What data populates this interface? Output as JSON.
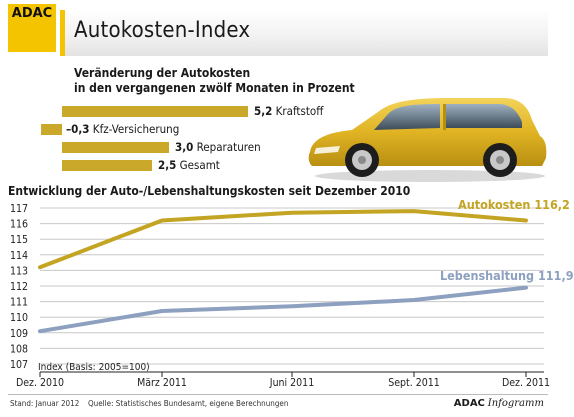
{
  "header": {
    "logo_text": "ADAC",
    "title": "Autokosten-Index",
    "accent_color": "#f5c400"
  },
  "bar_section": {
    "title_line1": "Veränderung der Autokosten",
    "title_line2": "in den vergangenen zwölf Monaten in Prozent"
  },
  "line_section": {
    "title": "Entwicklung der Auto-/Lebenshaltungskosten seit Dezember 2010",
    "index_note": "Index (Basis: 2005=100)"
  },
  "chart_data": [
    {
      "type": "bar",
      "orientation": "horizontal",
      "title": "Veränderung der Autokosten in den vergangenen zwölf Monaten in Prozent",
      "categories": [
        "Kraftstoff",
        "Kfz-Versicherung",
        "Reparaturen",
        "Gesamt"
      ],
      "values": [
        5.2,
        -0.3,
        3.0,
        2.5
      ],
      "value_labels": [
        "5,2",
        "–0,3",
        "3,0",
        "2,5"
      ],
      "color": "#c9a82a"
    },
    {
      "type": "line",
      "title": "Entwicklung der Auto-/Lebenshaltungskosten seit Dezember 2010",
      "x": [
        "Dez. 2010",
        "März 2011",
        "Juni 2011",
        "Sept. 2011",
        "Dez. 2011"
      ],
      "x_ticks": [
        "Dez. 2010",
        "März 2011",
        "Juni 2011",
        "Sept. 2011",
        "Dez. 2011"
      ],
      "y_ticks": [
        "107",
        "108",
        "109",
        "110",
        "111",
        "112",
        "113",
        "114",
        "115",
        "116",
        "117"
      ],
      "ylim": [
        107,
        117
      ],
      "grid": true,
      "series": [
        {
          "name": "Autokosten",
          "end_value_label": "116,2",
          "color": "#c4a423",
          "values": [
            113.2,
            116.2,
            116.7,
            116.8,
            116.2
          ]
        },
        {
          "name": "Lebenshaltung",
          "end_value_label": "111,9",
          "color": "#8da0bf",
          "values": [
            109.1,
            110.4,
            110.7,
            111.1,
            111.9
          ]
        }
      ]
    }
  ],
  "footer": {
    "stand": "Stand: Januar 2012",
    "quelle": "Quelle: Statistisches Bundesamt, eigene Berechnungen",
    "brand_bold": "ADAC",
    "brand_italic": "Infogramm"
  }
}
